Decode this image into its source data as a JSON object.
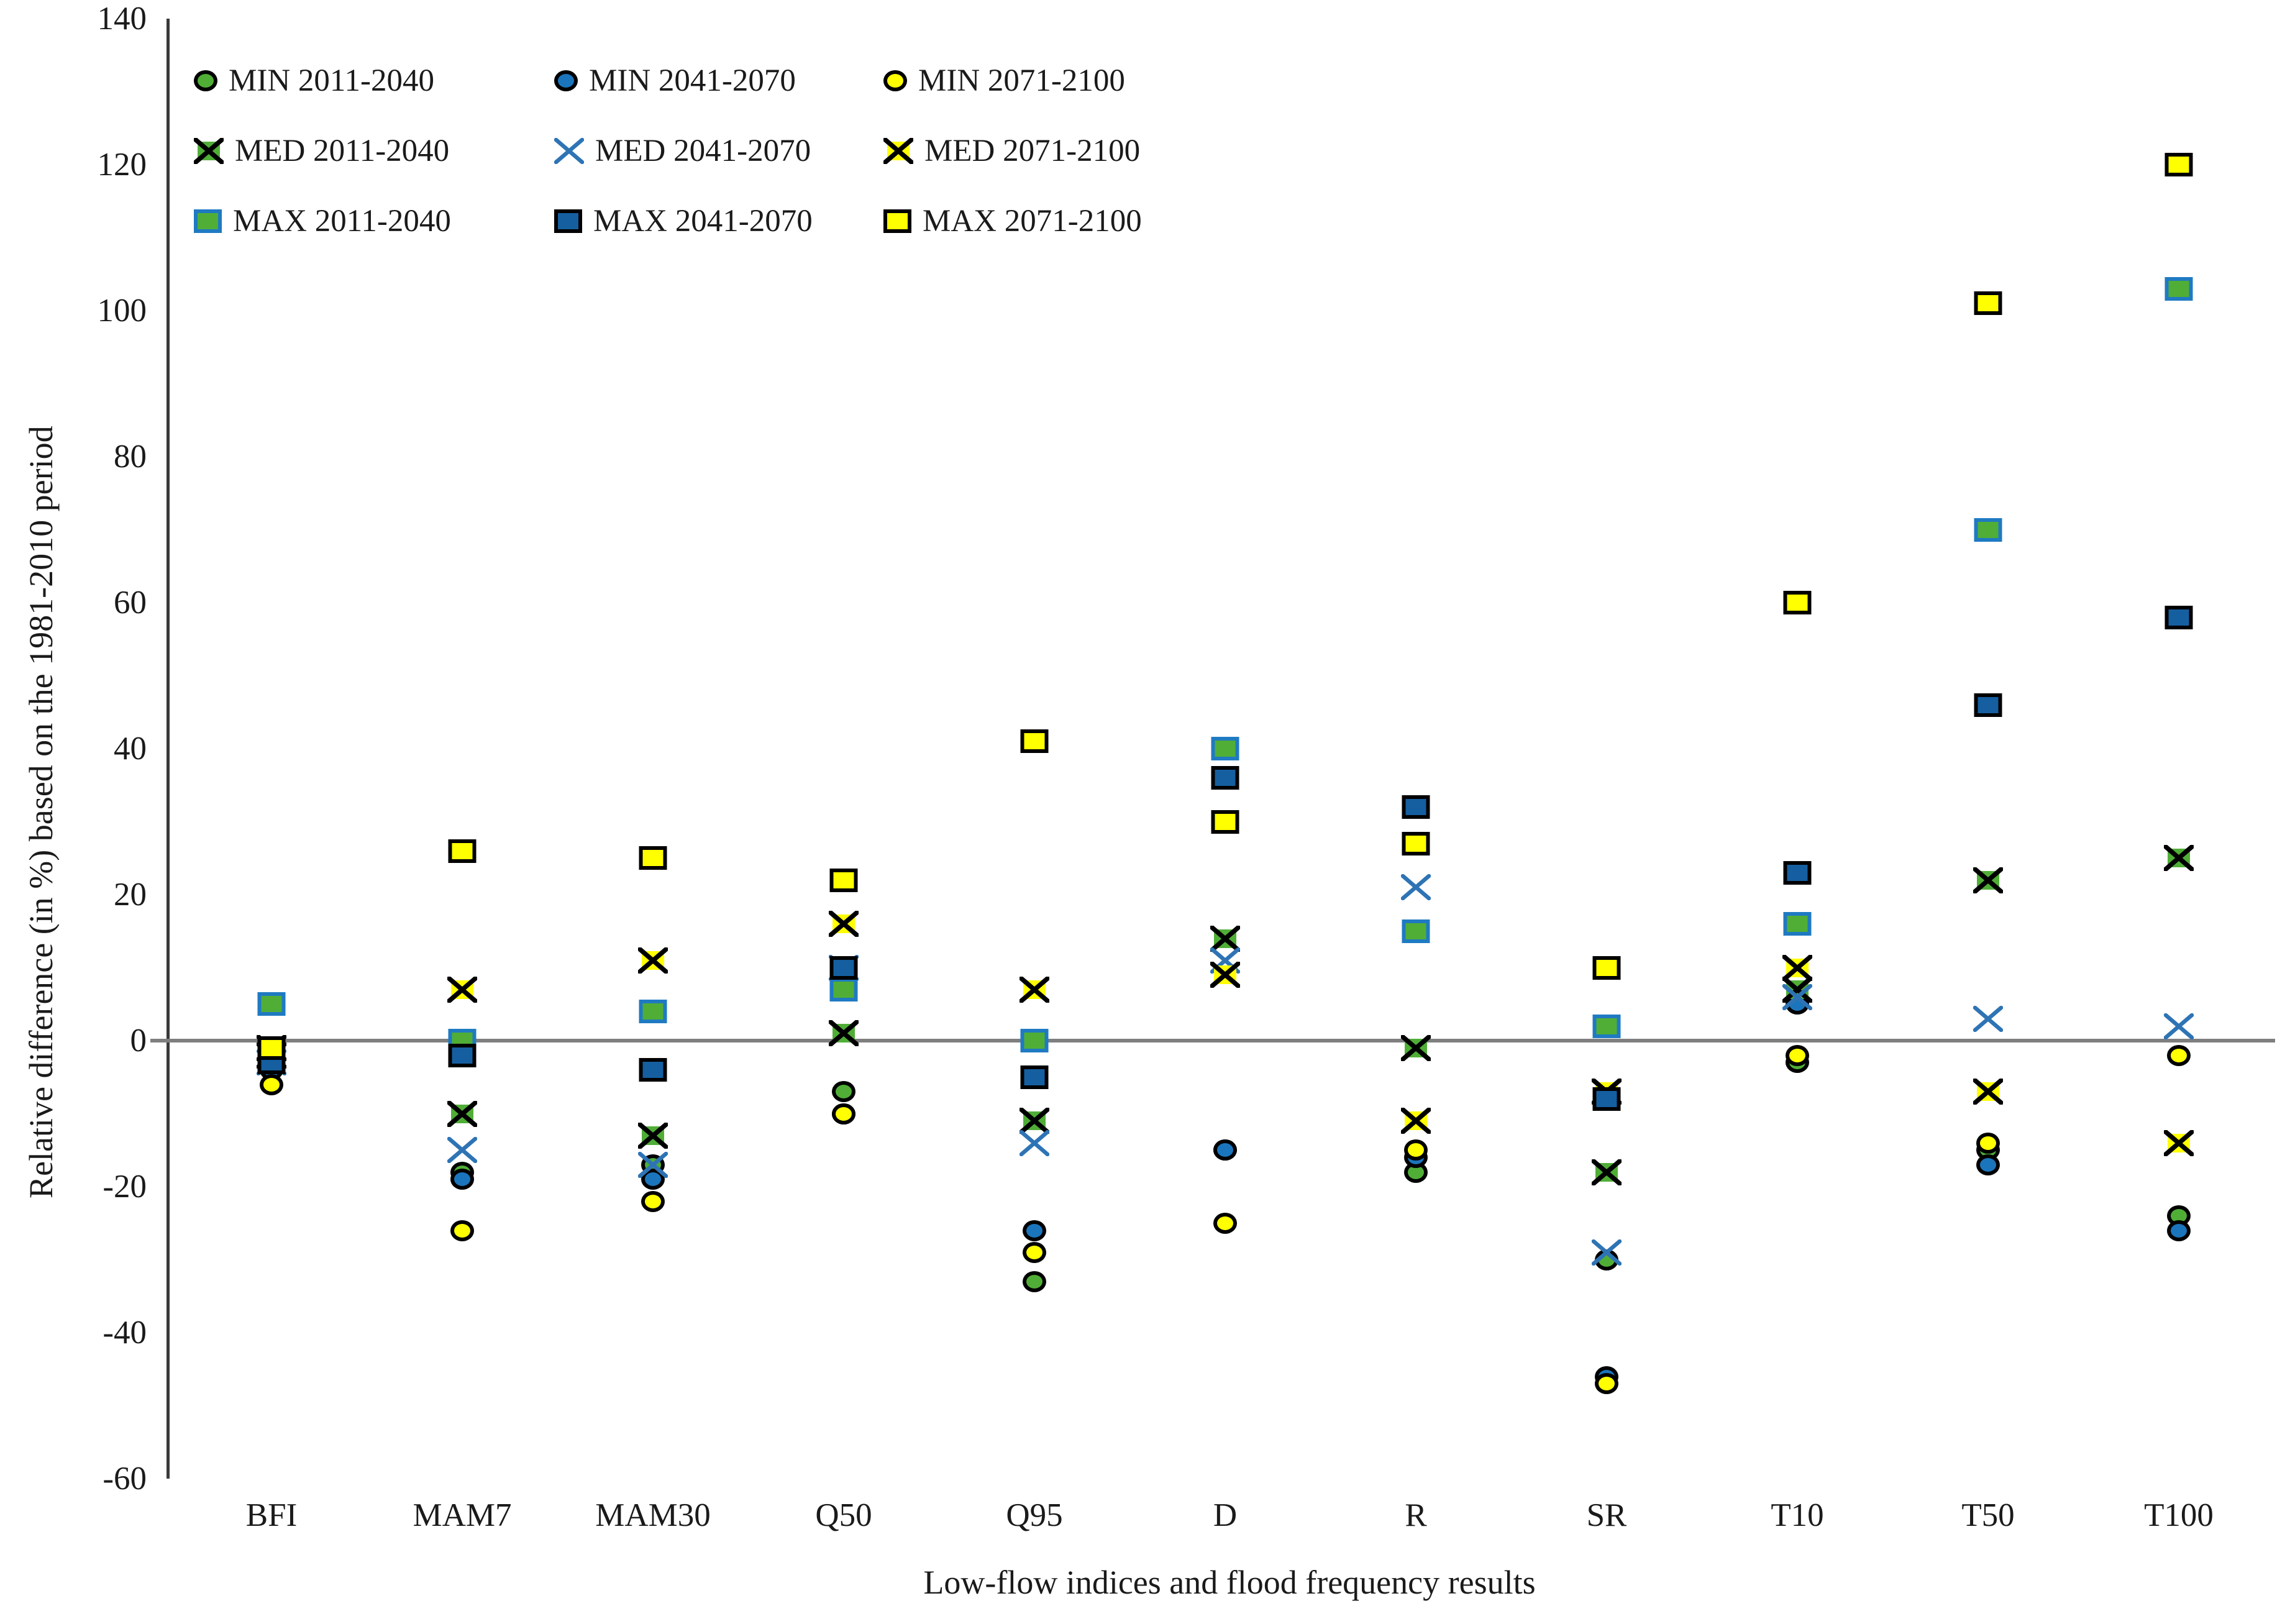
{
  "figure": {
    "y_axis_title": "Relative difference (in %) based on the 1981-2010 period",
    "x_axis_title": "Low-flow indices and flood frequency results"
  },
  "colors": {
    "green": "#50AE37",
    "green_square_border": "#1F7AC2",
    "blue_circle": "#1B75BC",
    "blue_square": "#155FA0",
    "blue_x": "#2E74B5",
    "yellow": "#FFFF00",
    "marker_outline": "#000000",
    "zero_line": "#7F7F7F",
    "axis_line": "#3A3A3A"
  },
  "chart_data": {
    "type": "scatter",
    "title": "",
    "xlabel": "Low-flow indices and flood frequency results",
    "ylabel": "Relative difference (in %) based on the 1981-2010 period",
    "categories": [
      "BFI",
      "MAM7",
      "MAM30",
      "Q50",
      "Q95",
      "D",
      "R",
      "SR",
      "T10",
      "T50",
      "T100"
    ],
    "ylim": [
      -60,
      140
    ],
    "y_ticks": [
      140,
      120,
      100,
      80,
      60,
      40,
      20,
      0,
      -20,
      -40,
      -60
    ],
    "grid": false,
    "legend_position": "top-left inside",
    "series": [
      {
        "name": "MIN 2011-2040",
        "marker": "circle",
        "fill": "#50AE37",
        "border": "#000000",
        "values": [
          -4,
          -18,
          -17,
          -7,
          -33,
          -15,
          -18,
          -30,
          -3,
          -15,
          -24
        ]
      },
      {
        "name": "MIN 2041-2070",
        "marker": "circle",
        "fill": "#1B75BC",
        "border": "#000000",
        "values": [
          -4,
          -19,
          -19,
          -10,
          -26,
          -15,
          -16,
          -46,
          5,
          -17,
          -26
        ]
      },
      {
        "name": "MIN 2071-2100",
        "marker": "circle",
        "fill": "#FFFF00",
        "border": "#000000",
        "values": [
          -6,
          -26,
          -22,
          -10,
          -29,
          -25,
          -15,
          -47,
          -2,
          -14,
          -2
        ]
      },
      {
        "name": "MED 2011-2040",
        "marker": "square-x",
        "fill": "#50AE37",
        "border": "#000000",
        "values": [
          -2,
          -10,
          -13,
          1,
          -11,
          14,
          -1,
          -18,
          7,
          22,
          25
        ]
      },
      {
        "name": "MED 2041-2070",
        "marker": "x",
        "fill": "none",
        "border": "#2E74B5",
        "values": [
          -3,
          -15,
          -17,
          10,
          -14,
          11,
          21,
          -29,
          6,
          3,
          2
        ]
      },
      {
        "name": "MED 2071-2100",
        "marker": "square-x",
        "fill": "#FFFF00",
        "border": "#000000",
        "values": [
          -1,
          7,
          11,
          16,
          7,
          9,
          -11,
          -7,
          10,
          -7,
          -14
        ]
      },
      {
        "name": "MAX 2011-2040",
        "marker": "square",
        "fill": "#50AE37",
        "border": "#1F7AC2",
        "values": [
          5,
          0,
          4,
          7,
          0,
          40,
          15,
          2,
          16,
          70,
          103
        ]
      },
      {
        "name": "MAX 2041-2070",
        "marker": "square",
        "fill": "#155FA0",
        "border": "#000000",
        "values": [
          -3,
          -2,
          -4,
          10,
          -5,
          36,
          32,
          -8,
          23,
          46,
          58
        ]
      },
      {
        "name": "MAX 2071-2100",
        "marker": "square",
        "fill": "#FFFF00",
        "border": "#000000",
        "values": [
          -1,
          26,
          25,
          22,
          41,
          30,
          27,
          10,
          60,
          101,
          120
        ]
      }
    ]
  }
}
